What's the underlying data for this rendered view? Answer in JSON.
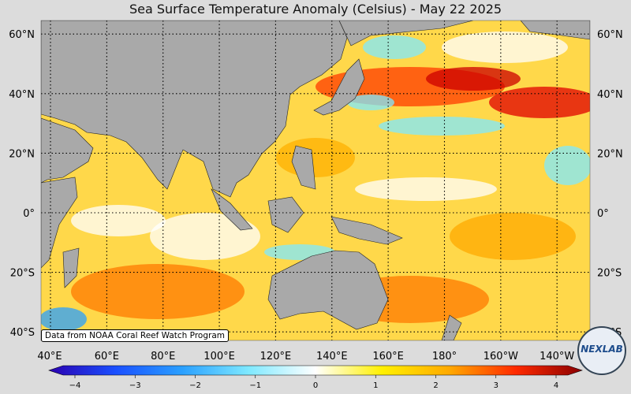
{
  "title": "Sea Surface Temperature Anomaly (Celsius) - May 22 2025",
  "credit": "Data from NOAA Coral Reef Watch Program",
  "logo_text": "NEXLAB",
  "lat_labels": [
    "60°N",
    "40°N",
    "20°N",
    "0°",
    "20°S",
    "40°S"
  ],
  "lat_values": [
    60,
    40,
    20,
    0,
    -20,
    -40
  ],
  "lon_labels": [
    "40°E",
    "60°E",
    "80°E",
    "100°E",
    "120°E",
    "140°E",
    "160°E",
    "180°",
    "160°W",
    "140°W"
  ],
  "lon_values": [
    40,
    60,
    80,
    100,
    120,
    140,
    160,
    180,
    200,
    220
  ],
  "colorbar": {
    "ticks": [
      "−4",
      "−3",
      "−2",
      "−1",
      "0",
      "1",
      "2",
      "3",
      "4"
    ],
    "min": -4,
    "max": 4,
    "stops": [
      "#2a00b0",
      "#1a4fff",
      "#2aa0ff",
      "#7fe9ff",
      "#ffffff",
      "#fff000",
      "#ffaa00",
      "#ff2a00",
      "#8a0000"
    ]
  },
  "colors": {
    "land": "#a9a9a9",
    "ocean_base": "#ffd84a",
    "warm": "#ff3b00",
    "cool": "#7fe9ff"
  }
}
